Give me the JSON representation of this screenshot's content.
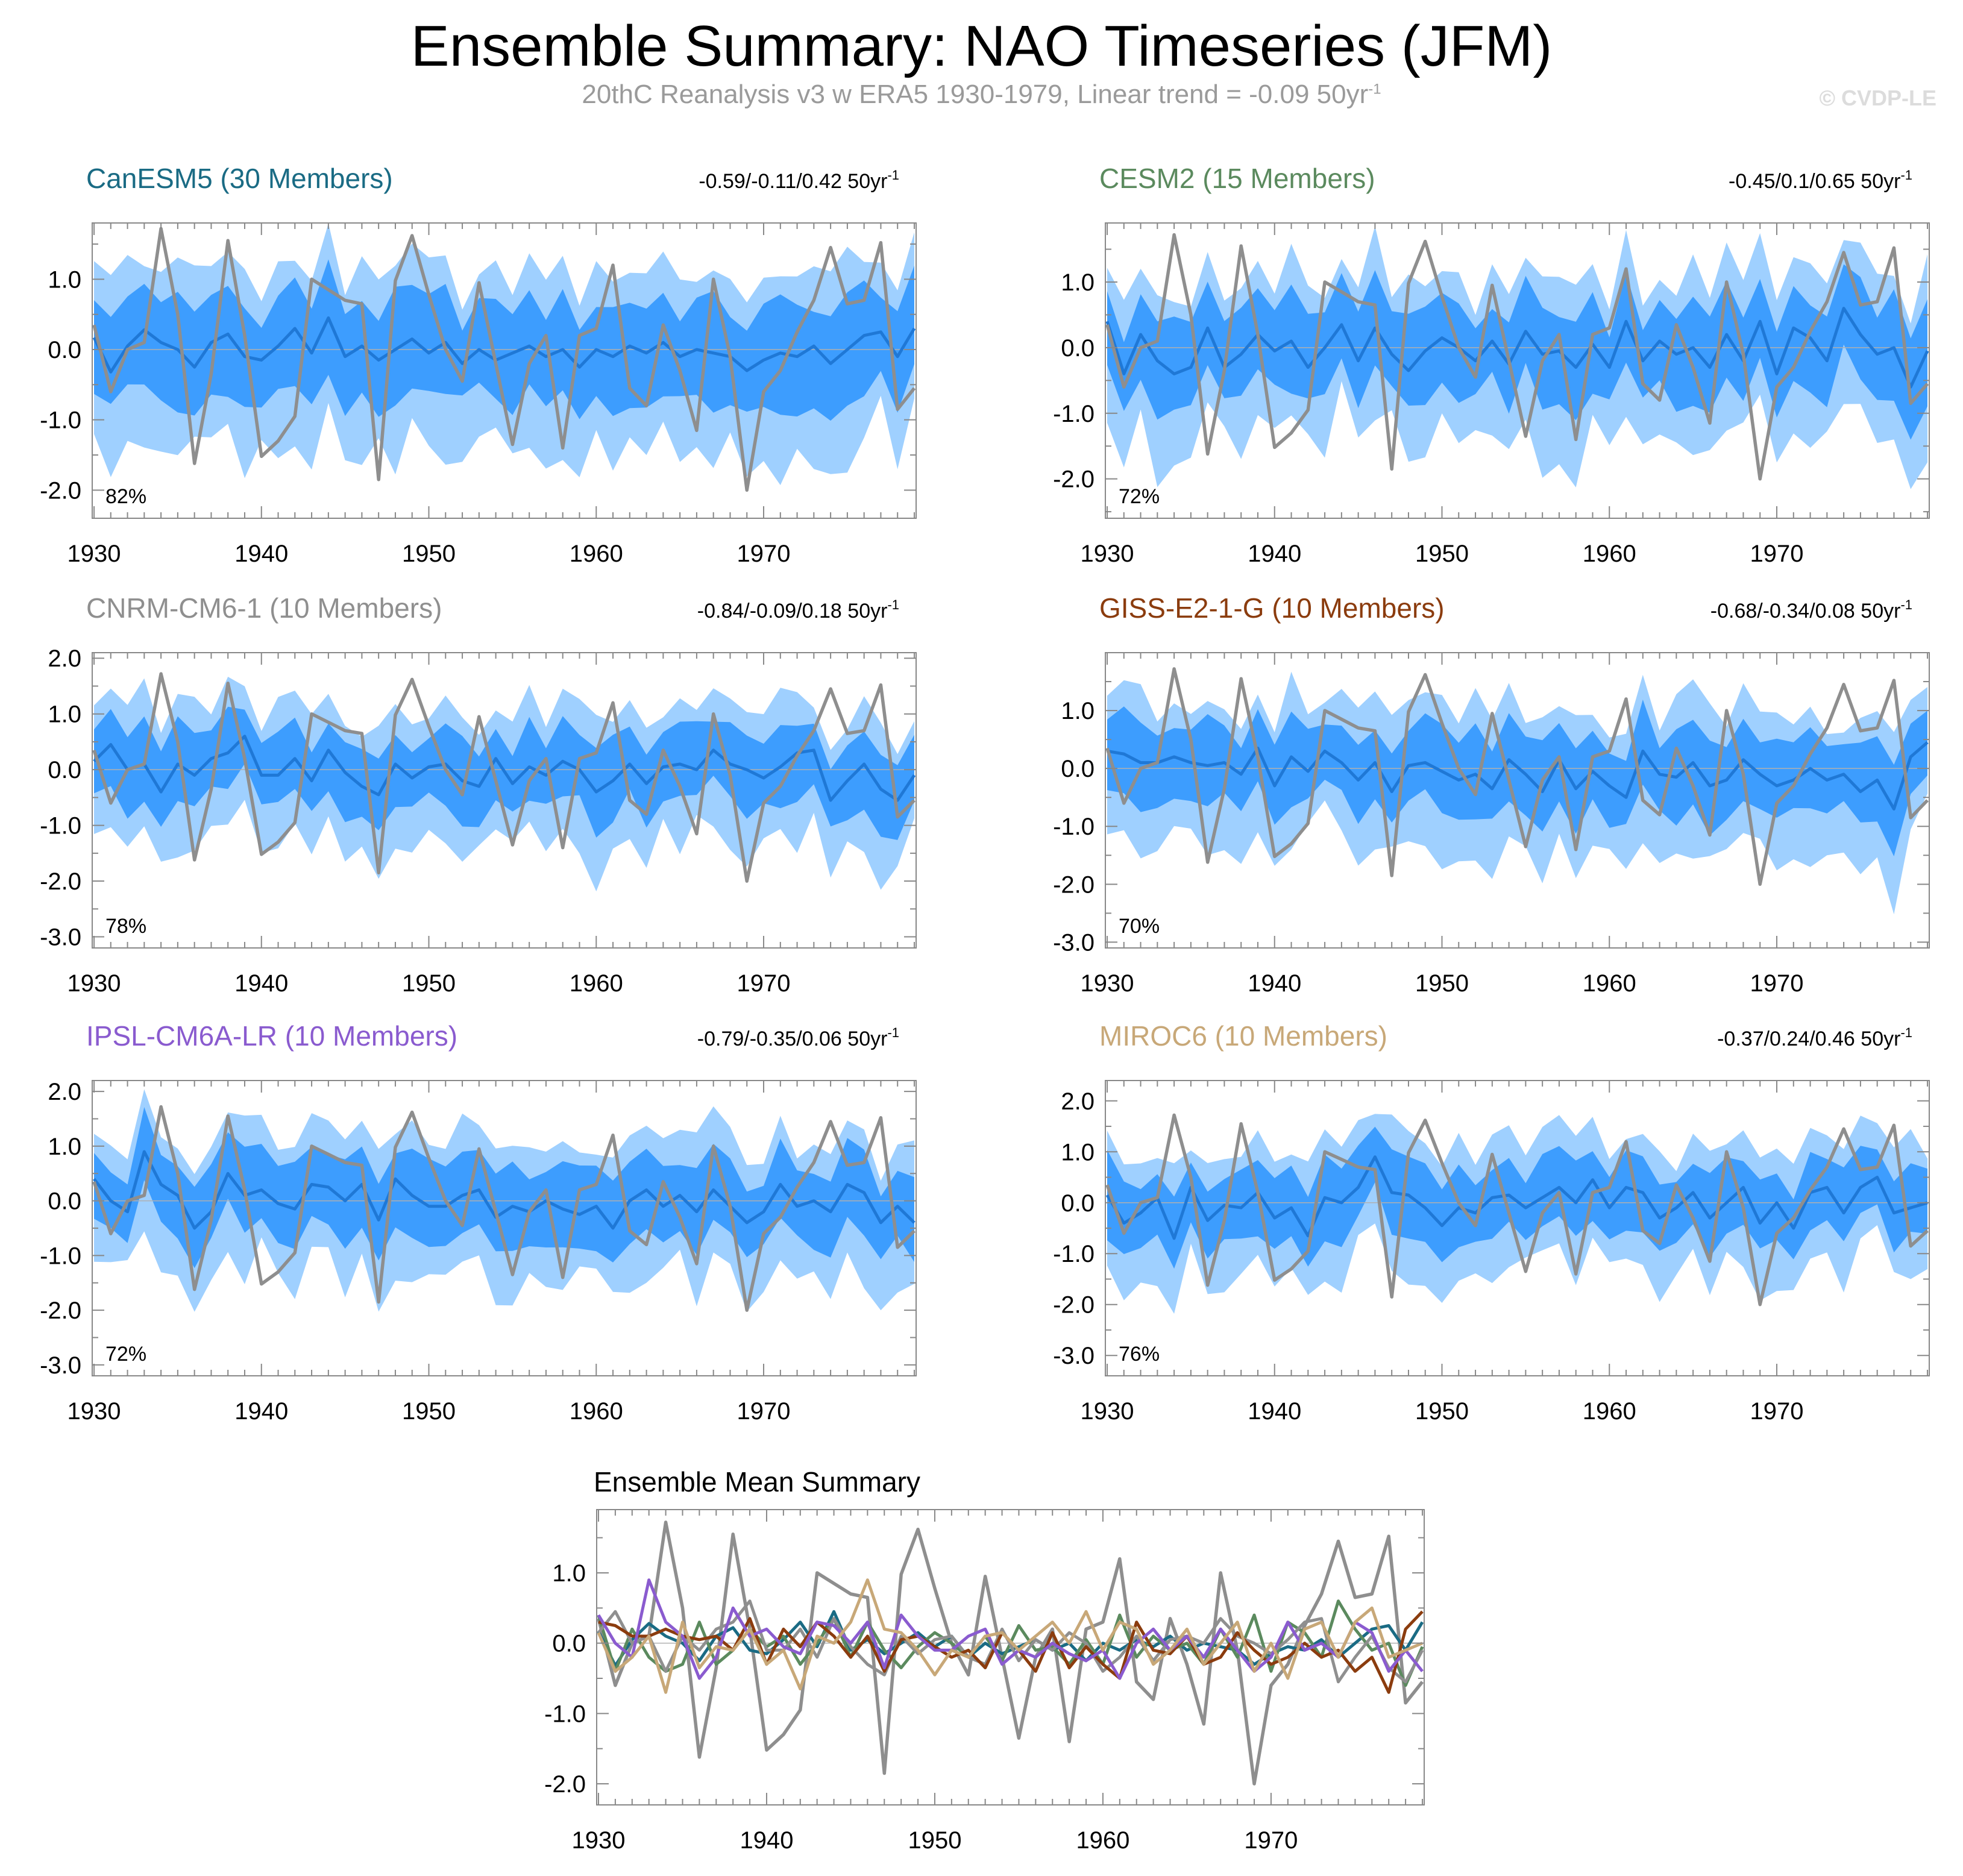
{
  "title": "Ensemble Summary: NAO Timeseries (JFM)",
  "subtitle": {
    "text": "20thC Reanalysis v3 w ERA5 1930-1979, Linear trend = -0.09 50yr",
    "superscript": "-1"
  },
  "watermark": "© CVDP-LE",
  "colors": {
    "band_outer": "#9fd0ff",
    "band_inner": "#3d9dfe",
    "ens_mean": "#1f78d6",
    "observed": "#8e8e8e"
  },
  "chart_data": [
    {
      "type": "line",
      "model": "CanESM5 (30 Members)",
      "model_color": "#1a6b84",
      "trend_label": "-0.59/-0.11/0.42 50yr",
      "trend_sup": "-1",
      "percent_label": "82%",
      "x_ticks": [
        "1930",
        "1940",
        "1950",
        "1960",
        "1970"
      ],
      "y_ticks": [
        "1.0",
        "0.0",
        "-1.0",
        "-2.0"
      ],
      "ylim": [
        -2.4,
        1.8
      ],
      "ens_mean": [
        0.17,
        -0.32,
        0.05,
        0.28,
        0.1,
        0.0,
        -0.25,
        0.1,
        0.22,
        -0.1,
        -0.15,
        0.05,
        0.3,
        -0.05,
        0.45,
        -0.1,
        0.05,
        -0.15,
        0.0,
        0.15,
        -0.05,
        0.1,
        -0.2,
        0.0,
        -0.15,
        -0.05,
        0.05,
        -0.1,
        0.0,
        -0.25,
        0.0,
        -0.1,
        0.05,
        -0.05,
        0.1,
        -0.1,
        0.0,
        -0.05,
        -0.1,
        -0.3,
        -0.15,
        -0.05,
        -0.1,
        0.05,
        -0.2,
        0.0,
        0.2,
        0.25,
        -0.1,
        0.3
      ]
    },
    {
      "type": "line",
      "model": "CESM2 (15 Members)",
      "model_color": "#5b8a5e",
      "trend_label": "-0.45/0.1/0.65 50yr",
      "trend_sup": "-1",
      "percent_label": "72%",
      "x_ticks": [
        "1930",
        "1940",
        "1950",
        "1960",
        "1970"
      ],
      "y_ticks": [
        "1.0",
        "0.0",
        "-1.0",
        "-2.0"
      ],
      "ylim": [
        -2.6,
        1.9
      ],
      "ens_mean": [
        0.4,
        -0.4,
        0.2,
        -0.2,
        -0.4,
        -0.3,
        0.3,
        -0.3,
        -0.1,
        0.2,
        -0.05,
        0.1,
        -0.3,
        0.0,
        0.35,
        -0.2,
        0.3,
        -0.1,
        -0.35,
        -0.05,
        0.15,
        0.0,
        -0.2,
        0.1,
        -0.25,
        0.25,
        -0.1,
        -0.05,
        -0.3,
        0.05,
        -0.3,
        0.4,
        -0.2,
        0.1,
        -0.1,
        0.0,
        -0.3,
        0.2,
        -0.2,
        0.4,
        -0.4,
        0.3,
        0.15,
        -0.2,
        0.6,
        0.2,
        -0.1,
        0.0,
        -0.6,
        -0.05
      ]
    },
    {
      "type": "line",
      "model": "CNRM-CM6-1 (10 Members)",
      "model_color": "#8f8f8f",
      "trend_label": "-0.84/-0.09/0.18 50yr",
      "trend_sup": "-1",
      "percent_label": "78%",
      "x_ticks": [
        "1930",
        "1940",
        "1950",
        "1960",
        "1970"
      ],
      "y_ticks": [
        "2.0",
        "1.0",
        "0.0",
        "-1.0",
        "-2.0",
        "-3.0"
      ],
      "ylim": [
        -3.2,
        2.1
      ],
      "ens_mean": [
        0.15,
        0.45,
        0.0,
        0.1,
        -0.4,
        0.1,
        -0.1,
        0.2,
        0.3,
        0.6,
        -0.1,
        -0.1,
        0.2,
        -0.2,
        0.35,
        -0.05,
        -0.3,
        -0.45,
        0.1,
        -0.15,
        0.05,
        0.1,
        -0.2,
        -0.3,
        0.2,
        -0.25,
        0.05,
        -0.1,
        0.15,
        0.0,
        -0.4,
        -0.2,
        0.1,
        -0.25,
        0.05,
        0.1,
        0.0,
        0.35,
        0.1,
        0.0,
        -0.15,
        0.05,
        0.3,
        0.35,
        -0.55,
        -0.2,
        0.1,
        -0.35,
        -0.55,
        -0.1
      ]
    },
    {
      "type": "line",
      "model": "GISS-E2-1-G (10 Members)",
      "model_color": "#8b3c0e",
      "trend_label": "-0.68/-0.34/0.08 50yr",
      "trend_sup": "-1",
      "percent_label": "70%",
      "x_ticks": [
        "1930",
        "1940",
        "1950",
        "1960",
        "1970"
      ],
      "y_ticks": [
        "1.0",
        "0.0",
        "-1.0",
        "-2.0",
        "-3.0"
      ],
      "ylim": [
        -3.1,
        2.0
      ],
      "ens_mean": [
        0.3,
        0.25,
        0.1,
        0.1,
        0.2,
        0.1,
        0.05,
        0.1,
        -0.1,
        0.35,
        -0.3,
        0.2,
        -0.05,
        0.3,
        0.1,
        -0.2,
        0.1,
        -0.4,
        0.05,
        0.1,
        -0.05,
        -0.2,
        -0.1,
        -0.35,
        0.15,
        -0.1,
        -0.4,
        0.15,
        -0.35,
        -0.05,
        -0.3,
        -0.5,
        0.3,
        -0.1,
        -0.15,
        0.1,
        -0.3,
        -0.2,
        0.15,
        -0.1,
        -0.3,
        -0.2,
        0.0,
        -0.2,
        -0.1,
        -0.4,
        -0.2,
        -0.7,
        0.2,
        0.45
      ]
    },
    {
      "type": "line",
      "model": "IPSL-CM6A-LR (10 Members)",
      "model_color": "#8a5bcf",
      "trend_label": "-0.79/-0.35/0.06 50yr",
      "trend_sup": "-1",
      "percent_label": "72%",
      "x_ticks": [
        "1930",
        "1940",
        "1950",
        "1960",
        "1970"
      ],
      "y_ticks": [
        "2.0",
        "1.0",
        "0.0",
        "-1.0",
        "-2.0",
        "-3.0"
      ],
      "ylim": [
        -3.2,
        2.2
      ],
      "ens_mean": [
        0.4,
        0.0,
        -0.2,
        0.9,
        0.3,
        0.1,
        -0.5,
        -0.2,
        0.5,
        0.1,
        0.2,
        -0.05,
        -0.15,
        0.3,
        0.25,
        0.0,
        0.3,
        -0.35,
        0.4,
        0.1,
        -0.1,
        -0.1,
        0.1,
        0.2,
        -0.3,
        -0.1,
        -0.2,
        0.0,
        -0.15,
        -0.25,
        -0.1,
        -0.5,
        0.0,
        0.2,
        -0.1,
        0.1,
        -0.2,
        0.2,
        -0.1,
        -0.4,
        -0.2,
        0.3,
        -0.1,
        0.0,
        -0.2,
        0.3,
        0.15,
        -0.4,
        -0.1,
        -0.4
      ]
    },
    {
      "type": "line",
      "model": "MIROC6 (10 Members)",
      "model_color": "#c8a878",
      "trend_label": "-0.37/0.24/0.46 50yr",
      "trend_sup": "-1",
      "percent_label": "76%",
      "x_ticks": [
        "1930",
        "1940",
        "1950",
        "1960",
        "1970"
      ],
      "y_ticks": [
        "2.0",
        "1.0",
        "0.0",
        "-1.0",
        "-2.0",
        "-3.0"
      ],
      "ylim": [
        -3.4,
        2.4
      ],
      "ens_mean": [
        0.15,
        -0.4,
        -0.2,
        0.1,
        -0.7,
        0.3,
        -0.35,
        -0.05,
        -0.1,
        0.2,
        -0.3,
        -0.1,
        -0.65,
        0.1,
        0.0,
        0.3,
        0.9,
        0.2,
        0.15,
        -0.1,
        -0.45,
        -0.1,
        -0.2,
        0.1,
        0.15,
        -0.1,
        0.1,
        0.3,
        0.0,
        0.45,
        -0.1,
        0.3,
        0.2,
        -0.3,
        -0.1,
        0.2,
        -0.3,
        0.0,
        0.3,
        -0.4,
        0.0,
        -0.5,
        0.2,
        0.3,
        -0.2,
        0.3,
        0.5,
        -0.2,
        -0.1,
        0.0
      ]
    },
    {
      "type": "line",
      "title": "Ensemble Mean Summary",
      "x_ticks": [
        "1930",
        "1940",
        "1950",
        "1960",
        "1970"
      ],
      "y_ticks": [
        "1.0",
        "0.0",
        "-1.0",
        "-2.0"
      ],
      "ylim": [
        -2.3,
        1.9
      ]
    }
  ],
  "observed": [
    0.35,
    -0.6,
    0.0,
    0.1,
    1.72,
    0.5,
    -1.62,
    -0.35,
    1.55,
    0.2,
    -1.52,
    -1.3,
    -0.95,
    1.0,
    0.85,
    0.7,
    0.65,
    -1.85,
    0.98,
    1.62,
    0.78,
    0.0,
    -0.45,
    0.95,
    -0.2,
    -1.35,
    -0.2,
    0.2,
    -1.4,
    0.2,
    0.3,
    1.2,
    -0.55,
    -0.8,
    0.35,
    -0.3,
    -1.15,
    1.0,
    -0.1,
    -2.0,
    -0.6,
    -0.3,
    0.25,
    0.7,
    1.45,
    0.65,
    0.7,
    1.52,
    -0.85,
    -0.55
  ]
}
